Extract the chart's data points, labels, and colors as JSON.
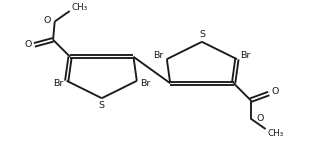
{
  "bg_color": "#ffffff",
  "line_color": "#1a1a1a",
  "text_color": "#1a1a1a",
  "linewidth": 1.35,
  "double_linewidth": 1.35,
  "font_size": 6.8,
  "figsize": [
    3.17,
    1.45
  ],
  "dpi": 100,
  "xlim": [
    0,
    9.5
  ],
  "ylim": [
    0,
    4.3
  ]
}
